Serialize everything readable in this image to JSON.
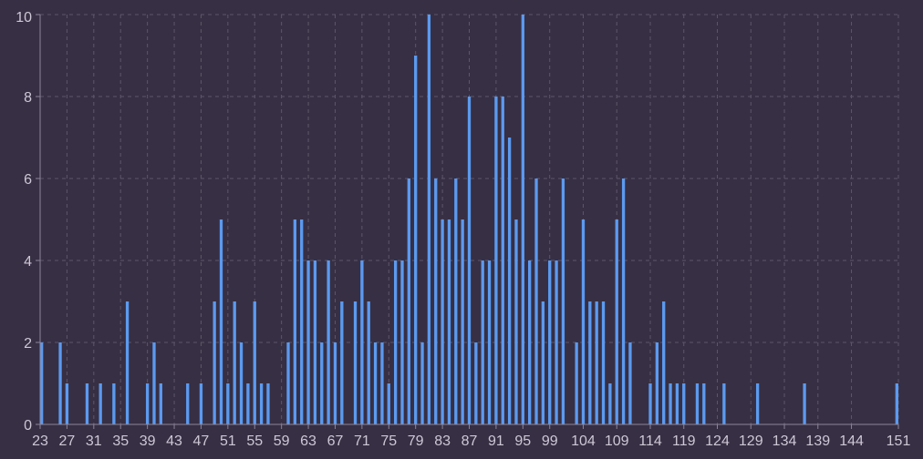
{
  "chart_data": {
    "type": "bar",
    "title": "",
    "xlabel": "",
    "ylabel": "",
    "ylim": [
      0,
      10
    ],
    "xlim": [
      23,
      151
    ],
    "y_ticks": [
      0,
      2,
      4,
      6,
      8,
      10
    ],
    "x_ticks": [
      23,
      27,
      31,
      35,
      39,
      43,
      47,
      51,
      55,
      59,
      63,
      67,
      71,
      75,
      79,
      83,
      87,
      91,
      95,
      99,
      104,
      109,
      114,
      119,
      124,
      129,
      134,
      139,
      144,
      151
    ],
    "grid": true,
    "legend": "none",
    "bar_color": "#5b9af0",
    "background": "#372f43",
    "x": [
      23,
      26,
      27,
      30,
      32,
      34,
      36,
      39,
      40,
      41,
      45,
      47,
      49,
      50,
      51,
      52,
      53,
      54,
      55,
      56,
      57,
      60,
      61,
      62,
      63,
      64,
      65,
      66,
      67,
      68,
      70,
      71,
      72,
      73,
      74,
      75,
      76,
      77,
      78,
      79,
      80,
      81,
      82,
      83,
      84,
      85,
      86,
      87,
      88,
      89,
      90,
      91,
      92,
      93,
      94,
      95,
      96,
      97,
      98,
      99,
      100,
      101,
      103,
      104,
      105,
      106,
      107,
      108,
      109,
      110,
      111,
      114,
      115,
      116,
      117,
      118,
      119,
      121,
      122,
      125,
      130,
      137,
      151
    ],
    "values": [
      2,
      2,
      1,
      1,
      1,
      1,
      3,
      1,
      2,
      1,
      1,
      1,
      3,
      5,
      1,
      3,
      2,
      1,
      3,
      1,
      1,
      2,
      5,
      5,
      4,
      4,
      2,
      4,
      2,
      3,
      3,
      4,
      3,
      2,
      2,
      1,
      4,
      4,
      6,
      9,
      2,
      10,
      6,
      5,
      5,
      6,
      5,
      8,
      2,
      4,
      4,
      8,
      8,
      7,
      5,
      10,
      4,
      6,
      3,
      4,
      4,
      6,
      2,
      5,
      3,
      3,
      3,
      1,
      5,
      6,
      2,
      1,
      2,
      3,
      1,
      1,
      1,
      1,
      1,
      1,
      1,
      1,
      1
    ]
  }
}
